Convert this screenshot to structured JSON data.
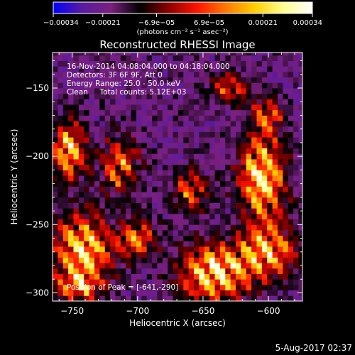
{
  "chart_data": {
    "type": "heatmap",
    "title": "Reconstructed RHESSI Image",
    "xlabel": "Heliocentric X (arcsec)",
    "ylabel": "Heliocentric Y (arcsec)",
    "xlim": [
      -765,
      -574
    ],
    "ylim": [
      -306,
      -124
    ],
    "xticks": [
      -750,
      -700,
      -650,
      -600
    ],
    "xtick_labels": [
      "−750",
      "−700",
      "−650",
      "−600"
    ],
    "yticks": [
      -150,
      -200,
      -250,
      -300
    ],
    "ytick_labels": [
      "−150",
      "−200",
      "−250",
      "−300"
    ],
    "grid": false,
    "colorbar": {
      "range": [
        -0.00034,
        0.00034
      ],
      "ticks": [
        -0.00034,
        -0.00021,
        -6.9e-05,
        6.9e-05,
        0.00021,
        0.00034
      ],
      "tick_labels": [
        "−0.00034",
        "−0.00021",
        "−6.9e−05",
        "6.9e−05",
        "0.00021",
        "0.00034"
      ],
      "unit_label": "(photons cm⁻² s⁻¹ asec⁻²)",
      "colors": [
        "#0000ff",
        "#5a1aa0",
        "#7a2080",
        "#000000",
        "#8c0000",
        "#ff1400",
        "#ff7a00",
        "#ffcf00",
        "#ffff90",
        "#ffffff"
      ]
    },
    "annotations": {
      "time_range": "16-Nov-2014 04:08:04.000 to 04:18:04.000",
      "detectors": "Detectors: 3F 6F 9F, Att 0",
      "energy": "Energy Range: 25.0 - 50.0 keV",
      "clean": "Clean     Total counts: 5.12E+03",
      "peak": "Position of Peak = [-641,-290]"
    },
    "bright_regions": [
      {
        "x": -753,
        "y": -195,
        "intensity": 0.85,
        "sx": 9,
        "sy": 14
      },
      {
        "x": -714,
        "y": -207,
        "intensity": 0.65,
        "sx": 10,
        "sy": 14
      },
      {
        "x": -742,
        "y": -268,
        "intensity": 0.9,
        "sx": 15,
        "sy": 18
      },
      {
        "x": -700,
        "y": -260,
        "intensity": 0.6,
        "sx": 10,
        "sy": 10
      },
      {
        "x": -745,
        "y": -295,
        "intensity": 0.55,
        "sx": 12,
        "sy": 8
      },
      {
        "x": -641,
        "y": -285,
        "intensity": 1.0,
        "sx": 18,
        "sy": 14
      },
      {
        "x": -605,
        "y": -215,
        "intensity": 0.95,
        "sx": 12,
        "sy": 22
      },
      {
        "x": -600,
        "y": -270,
        "intensity": 0.75,
        "sx": 15,
        "sy": 14
      },
      {
        "x": -660,
        "y": -225,
        "intensity": 0.55,
        "sx": 9,
        "sy": 10
      },
      {
        "x": -630,
        "y": -150,
        "intensity": 0.5,
        "sx": 10,
        "sy": 8
      },
      {
        "x": -600,
        "y": -170,
        "intensity": 0.55,
        "sx": 8,
        "sy": 8
      }
    ],
    "fringe_angle_deg": 35,
    "fringe_period_arcsec": 13
  },
  "footer": {
    "timestamp": "5-Aug-2017 02:37"
  }
}
